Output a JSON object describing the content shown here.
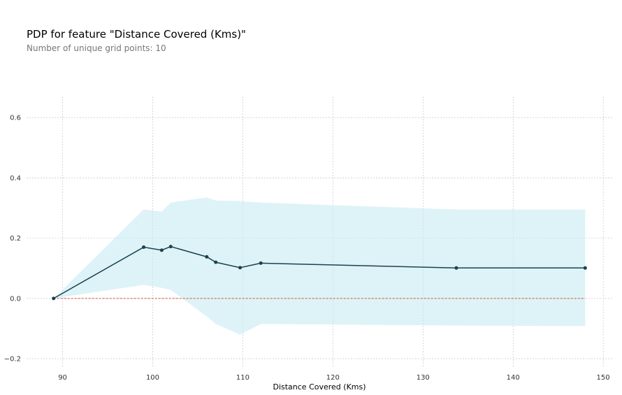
{
  "header": {
    "title": "PDP for feature \"Distance Covered (Kms)\"",
    "subtitle": "Number of unique grid points: 10"
  },
  "chart_data": {
    "type": "line",
    "title": "PDP for feature \"Distance Covered (Kms)\"",
    "subtitle": "Number of unique grid points: 10",
    "xlabel": "Distance Covered (Kms)",
    "ylabel": "",
    "xlim": [
      86,
      151
    ],
    "ylim": [
      -0.23,
      0.67
    ],
    "x_ticks": [
      90,
      100,
      110,
      120,
      130,
      140,
      150
    ],
    "y_ticks": [
      -0.2,
      0.0,
      0.2,
      0.4,
      0.6
    ],
    "y_tick_labels": [
      "−0.2",
      "0.0",
      "0.2",
      "0.4",
      "0.6"
    ],
    "grid": true,
    "legend": "none",
    "series": [
      {
        "x": [
          89,
          99,
          101,
          102,
          106,
          107,
          109.7,
          112,
          133.7,
          148
        ],
        "values": [
          0.0,
          0.17,
          0.16,
          0.172,
          0.138,
          0.12,
          0.102,
          0.117,
          0.101,
          0.101
        ],
        "color": "#1a4150"
      }
    ],
    "band": {
      "x": [
        89,
        99,
        101,
        102,
        106,
        107,
        109.7,
        112,
        133.7,
        148
      ],
      "upper": [
        0.0,
        0.295,
        0.288,
        0.318,
        0.335,
        0.325,
        0.323,
        0.318,
        0.295,
        0.295
      ],
      "lower": [
        0.0,
        0.045,
        0.035,
        0.028,
        -0.06,
        -0.085,
        -0.12,
        -0.085,
        -0.09,
        -0.092
      ],
      "color": "#c8ebf2"
    },
    "baseline": {
      "y": 0.0,
      "color": "#d0543e"
    }
  }
}
